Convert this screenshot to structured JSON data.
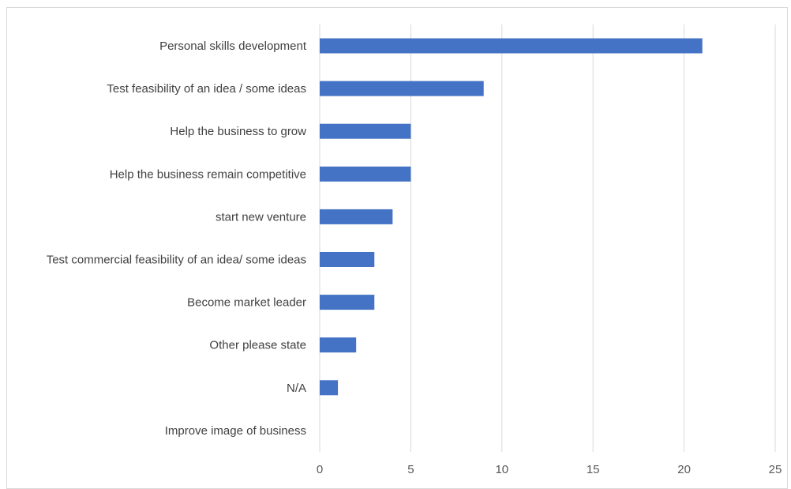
{
  "chart_data": {
    "type": "bar",
    "orientation": "horizontal",
    "categories": [
      "Personal skills development",
      "Test feasibility of an idea / some ideas",
      "Help the business to grow",
      "Help the business remain competitive",
      "start new venture",
      "Test commercial feasibility of an idea/ some ideas",
      "Become market leader",
      "Other please state",
      "N/A",
      "Improve image of business"
    ],
    "values": [
      21,
      9,
      5,
      5,
      4,
      3,
      3,
      2,
      1,
      0
    ],
    "xlim": [
      0,
      25
    ],
    "xticks": [
      "0",
      "5",
      "10",
      "15",
      "20",
      "25"
    ],
    "title": "",
    "xlabel": "",
    "ylabel": "",
    "grid": "vertical",
    "legend": "none",
    "bar_color": "#4472C4",
    "grid_color": "#d9d9d9"
  }
}
